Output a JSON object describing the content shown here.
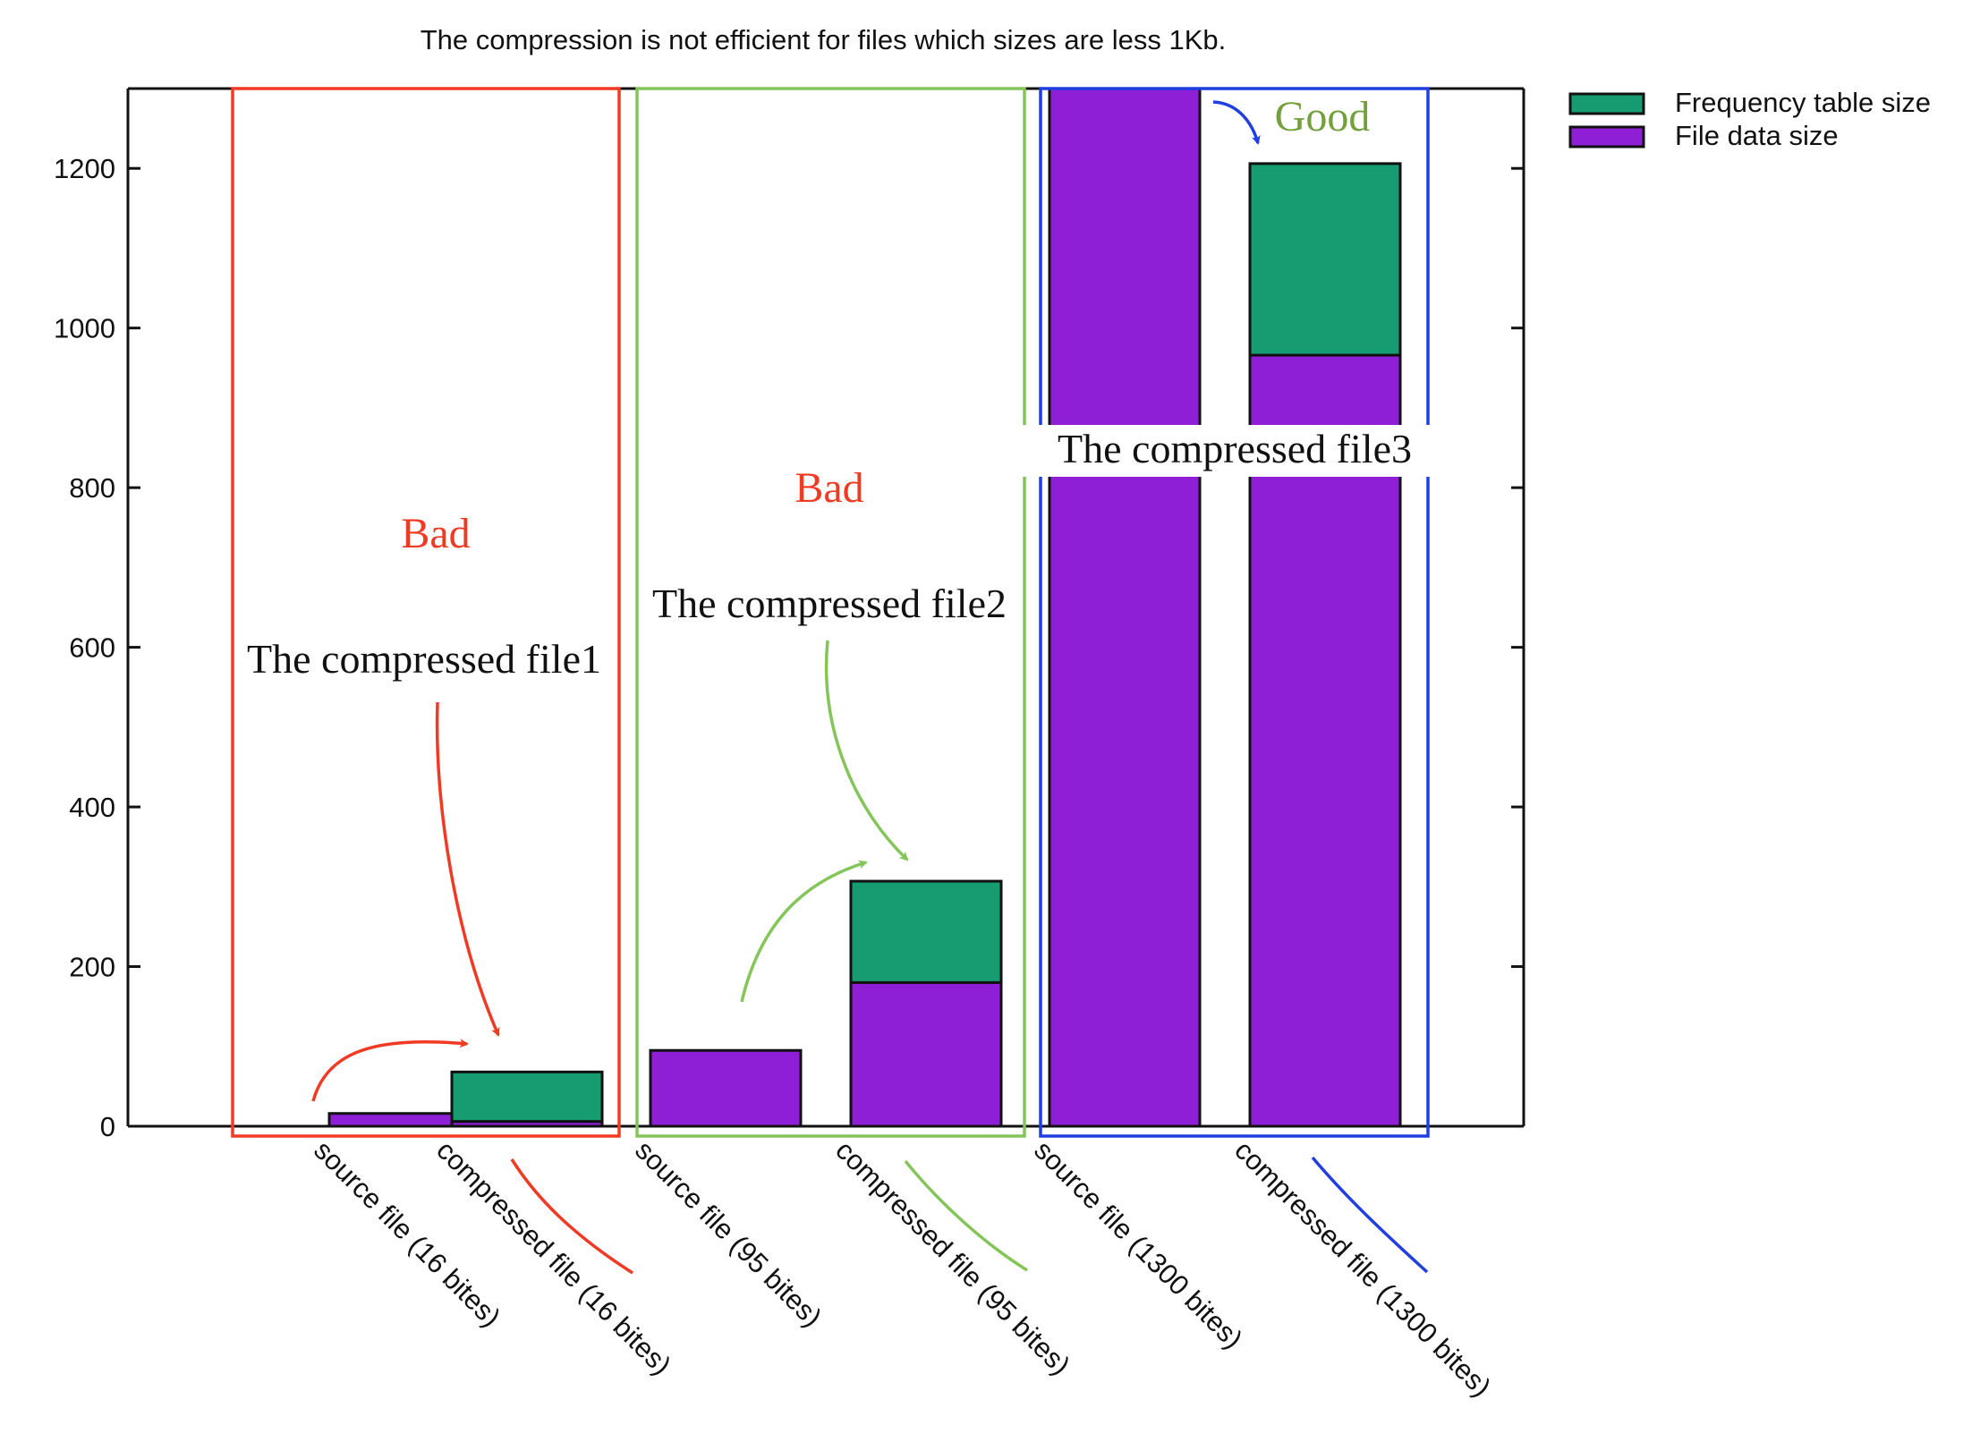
{
  "chart_data": {
    "type": "bar",
    "stacked": true,
    "title": "The compression is not efficient for files which sizes are less 1Kb.",
    "categories": [
      "source file (16 bites)",
      "compressed file (16 bites)",
      "source file (95 bites)",
      "compressed file (95 bites)",
      "source file (1300 bites)",
      "compressed file (1300 bites)"
    ],
    "series": [
      {
        "name": "File data size",
        "color": "#8e1fd6",
        "values": [
          16,
          6,
          95,
          180,
          1300,
          966
        ]
      },
      {
        "name": "Frequency table size",
        "color": "#179c72",
        "values": [
          0,
          62,
          0,
          127,
          0,
          240
        ]
      }
    ],
    "legend_order": [
      "Frequency table size",
      "File data size"
    ],
    "legend_position": "outside-top-right",
    "ylim": [
      0,
      1300
    ],
    "yticks": [
      0,
      200,
      400,
      600,
      800,
      1000,
      1200
    ],
    "grid": false,
    "annotations": {
      "groups": [
        {
          "color": "#f03a24",
          "verdict": "Bad",
          "note": "The compressed file1",
          "categories": [
            0,
            1
          ]
        },
        {
          "color": "#84c55a",
          "verdict": "Bad",
          "note": "The compressed file2",
          "categories": [
            2,
            3
          ]
        },
        {
          "color": "#1f3fe0",
          "verdict": "Good",
          "note": "The compressed file3",
          "categories": [
            4,
            5
          ]
        }
      ],
      "verdict_colors": {
        "Bad": "#f03a24",
        "Good": "#73a03d"
      }
    }
  }
}
